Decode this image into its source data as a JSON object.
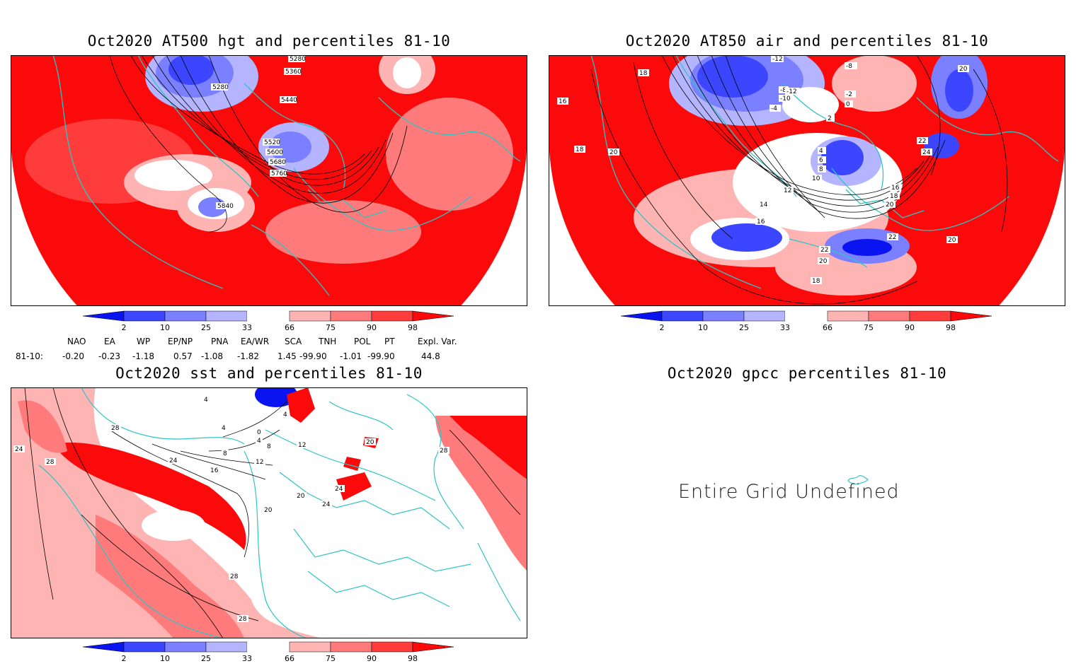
{
  "panels": {
    "hgt": {
      "title": "Oct2020 AT500 hgt and percentiles 81-10",
      "contour_labels": [
        "5280",
        "5360",
        "5280",
        "5440",
        "5520",
        "5600",
        "5680",
        "5760",
        "5840"
      ]
    },
    "air": {
      "title": "Oct2020 AT850 air and percentiles 81-10",
      "contour_labels": [
        "-12",
        "-8",
        "-8",
        "-12",
        "-10",
        "-4",
        "-2",
        "0",
        "2",
        "4",
        "6",
        "8",
        "10",
        "12",
        "14",
        "16",
        "16",
        "18",
        "20",
        "18",
        "16",
        "18",
        "20",
        "22",
        "24",
        "20",
        "22",
        "20",
        "20",
        "22",
        "18"
      ]
    },
    "sst": {
      "title": "Oct2020 sst and percentiles 81-10",
      "contour_labels": [
        "4",
        "4",
        "0",
        "4",
        "4",
        "8",
        "8",
        "12",
        "12",
        "16",
        "20",
        "20",
        "24",
        "24",
        "24",
        "28",
        "28",
        "28",
        "28",
        "28",
        "24",
        "20"
      ]
    },
    "gpcc": {
      "title": "Oct2020 gpcc percentiles 81-10",
      "message": "Entire Grid Undefined"
    }
  },
  "colorbar": {
    "ticks": [
      "2",
      "10",
      "25",
      "33",
      "66",
      "75",
      "90",
      "98"
    ],
    "colors": [
      "#0a14f0",
      "#3c46ff",
      "#7a80ff",
      "#b4b4ff",
      "#ffffff",
      "#ffb4b4",
      "#ff7a7a",
      "#ff3c3c",
      "#fa0a0a"
    ]
  },
  "teleconnections": {
    "headers": [
      "NAO",
      "EA",
      "WP",
      "EP/NP",
      "PNA",
      "EA/WR",
      "SCA",
      "TNH",
      "POL",
      "PT",
      "Expl. Var."
    ],
    "row_label": "81-10:",
    "values": [
      "-0.20",
      "-0.23",
      "-1.18",
      "0.57",
      "-1.08",
      "-1.82",
      "1.45",
      "-99.90",
      "-1.01",
      "-99.90",
      "44.8"
    ]
  },
  "colors": {
    "coast": "#2ec4c4",
    "red_strong": "#fa0a0a",
    "blue_strong": "#0a14f0"
  }
}
